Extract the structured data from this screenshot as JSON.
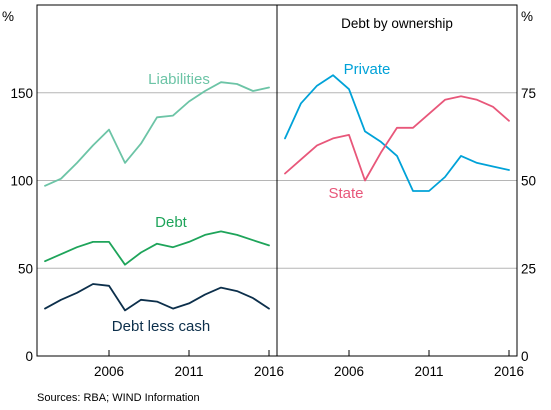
{
  "chart_data": [
    {
      "type": "line",
      "title": "",
      "y_unit": "%",
      "ylim": [
        0,
        200
      ],
      "yticks": [
        "0",
        "50",
        "100",
        "150"
      ],
      "xlim": [
        2001.5,
        2016.5
      ],
      "xticks": [
        "2006",
        "2011",
        "2016"
      ],
      "grid": true,
      "series": [
        {
          "name": "Liabilities",
          "color": "#6cc4a6",
          "x": [
            2002,
            2003,
            2004,
            2005,
            2006,
            2007,
            2008,
            2009,
            2010,
            2011,
            2012,
            2013,
            2014,
            2015,
            2016
          ],
          "y": [
            97,
            101,
            110,
            120,
            129,
            110,
            121,
            136,
            137,
            145,
            151,
            156,
            155,
            151,
            153
          ]
        },
        {
          "name": "Debt",
          "color": "#1ea45a",
          "x": [
            2002,
            2003,
            2004,
            2005,
            2006,
            2007,
            2008,
            2009,
            2010,
            2011,
            2012,
            2013,
            2014,
            2015,
            2016
          ],
          "y": [
            54,
            58,
            62,
            65,
            65,
            52,
            59,
            64,
            62,
            65,
            69,
            71,
            69,
            66,
            63
          ]
        },
        {
          "name": "Debt less cash",
          "color": "#0c2f4b",
          "x": [
            2002,
            2003,
            2004,
            2005,
            2006,
            2007,
            2008,
            2009,
            2010,
            2011,
            2012,
            2013,
            2014,
            2015,
            2016
          ],
          "y": [
            27,
            32,
            36,
            41,
            40,
            26,
            32,
            31,
            27,
            30,
            35,
            39,
            37,
            33,
            27
          ]
        }
      ]
    },
    {
      "type": "line",
      "title": "Debt by ownership",
      "y_unit": "%",
      "ylim": [
        0,
        100
      ],
      "yticks": [
        "0",
        "25",
        "50",
        "75"
      ],
      "xlim": [
        2001.5,
        2016.5
      ],
      "xticks": [
        "2006",
        "2011",
        "2016"
      ],
      "grid": true,
      "series": [
        {
          "name": "Private",
          "color": "#00a2d8",
          "x": [
            2002,
            2003,
            2004,
            2005,
            2006,
            2007,
            2008,
            2009,
            2010,
            2011,
            2012,
            2013,
            2014,
            2015,
            2016
          ],
          "y": [
            62,
            72,
            77,
            80,
            76,
            64,
            61,
            57,
            47,
            47,
            51,
            57,
            55,
            54,
            53
          ]
        },
        {
          "name": "State",
          "color": "#e8577a",
          "x": [
            2002,
            2003,
            2004,
            2005,
            2006,
            2007,
            2008,
            2009,
            2010,
            2011,
            2012,
            2013,
            2014,
            2015,
            2016
          ],
          "y": [
            52,
            56,
            60,
            62,
            63,
            50,
            58,
            65,
            65,
            69,
            73,
            74,
            73,
            71,
            67
          ]
        }
      ]
    }
  ],
  "notes": {
    "source": "Sources: RBA; WIND Information"
  }
}
